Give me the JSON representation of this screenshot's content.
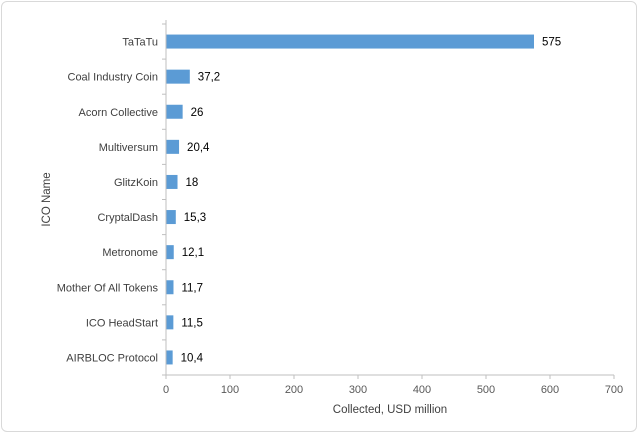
{
  "chart_data": {
    "type": "bar",
    "orientation": "horizontal",
    "categories": [
      "TaTaTu",
      "Coal Industry Coin",
      "Acorn Collective",
      "Multiversum",
      "GlitzKoin",
      "CryptalDash",
      "Metronome",
      "Mother Of All Tokens",
      "ICO HeadStart",
      "AIRBLOC Protocol"
    ],
    "values": [
      575,
      37.2,
      26,
      20.4,
      18,
      15.3,
      12.1,
      11.7,
      11.5,
      10.4
    ],
    "value_labels": [
      "575",
      "37,2",
      "26",
      "20,4",
      "18",
      "15,3",
      "12,1",
      "11,7",
      "11,5",
      "10,4"
    ],
    "xlabel": "Collected, USD million",
    "ylabel": "ICO Name",
    "xlim": [
      0,
      700
    ],
    "xticks": [
      0,
      100,
      200,
      300,
      400,
      500,
      600,
      700
    ],
    "grid": false,
    "legend": "none",
    "bar_color": "#5b9bd5"
  }
}
